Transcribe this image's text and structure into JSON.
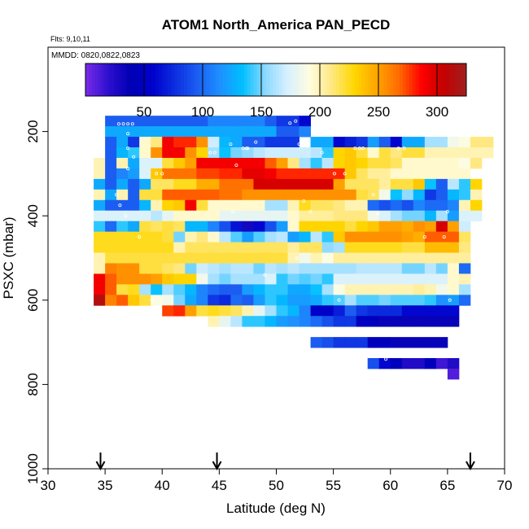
{
  "chart_data": {
    "type": "heatmap",
    "title": "ATOM1 North_America PAN_PECD",
    "info_lines": [
      "Flts: 9,10,11",
      "MMDD: 0820,0822,0823"
    ],
    "xlabel": "Latitude (deg N)",
    "ylabel": "PSXC (mbar)",
    "xlim": [
      30,
      70
    ],
    "ylim": [
      1000,
      0
    ],
    "x_ticks": [
      30,
      35,
      40,
      45,
      50,
      55,
      60,
      65,
      70
    ],
    "y_ticks": [
      200,
      400,
      600,
      800,
      1000
    ],
    "colorbar": {
      "range": [
        0,
        325
      ],
      "tick_labels": [
        50,
        100,
        150,
        200,
        250,
        300
      ],
      "colors": [
        "#7a2be8",
        "#2e10d0",
        "#0000b4",
        "#0000cc",
        "#0c2ee0",
        "#1c5ef2",
        "#1e90ff",
        "#00bfff",
        "#8ad8ff",
        "#d6f0ff",
        "#fffde0",
        "#ffe880",
        "#ffd700",
        "#ffa500",
        "#ff6a00",
        "#ff0000",
        "#c40000",
        "#a02020"
      ]
    },
    "arrows_at_latitude": [
      34.6,
      44.8,
      67.0
    ],
    "x_centers": [
      34.5,
      35.5,
      36.5,
      37.5,
      38.5,
      39.5,
      40.5,
      41.5,
      42.5,
      43.5,
      44.5,
      45.5,
      46.5,
      47.5,
      48.5,
      49.5,
      50.5,
      51.5,
      52.5,
      53.5,
      54.5,
      55.5,
      56.5,
      57.5,
      58.5,
      59.5,
      60.5,
      61.5,
      62.5,
      63.5,
      64.5,
      65.5,
      66.5,
      67.5,
      68.5
    ],
    "y_centers": [
      175,
      200,
      225,
      250,
      275,
      300,
      325,
      350,
      375,
      400,
      425,
      450,
      475,
      500,
      525,
      550,
      575,
      600,
      625,
      650,
      675,
      700,
      725,
      750,
      775,
      800,
      825,
      850,
      875,
      900,
      925,
      950
    ],
    "grid": [
      [
        null,
        95,
        95,
        95,
        95,
        95,
        95,
        95,
        95,
        95,
        110,
        110,
        110,
        110,
        110,
        95,
        80,
        80,
        60,
        null,
        null,
        null,
        null,
        null,
        null,
        null,
        null,
        null,
        null,
        null,
        null,
        null,
        null,
        null,
        null
      ],
      [
        null,
        125,
        125,
        125,
        125,
        125,
        125,
        125,
        125,
        125,
        125,
        125,
        125,
        125,
        125,
        125,
        95,
        95,
        110,
        null,
        null,
        null,
        null,
        null,
        null,
        null,
        null,
        null,
        null,
        null,
        null,
        null,
        null,
        null,
        null
      ],
      [
        null,
        95,
        125,
        80,
        195,
        210,
        290,
        280,
        280,
        255,
        170,
        130,
        125,
        95,
        95,
        80,
        80,
        80,
        null,
        125,
        125,
        60,
        70,
        80,
        120,
        95,
        60,
        125,
        125,
        160,
        160,
        185,
        190,
        210,
        210
      ],
      [
        null,
        95,
        130,
        140,
        195,
        255,
        290,
        290,
        255,
        230,
        160,
        135,
        150,
        155,
        165,
        170,
        170,
        170,
        170,
        165,
        140,
        230,
        235,
        220,
        195,
        220,
        210,
        220,
        220,
        200,
        200,
        200,
        200,
        200,
        200
      ],
      [
        200,
        95,
        200,
        125,
        175,
        175,
        220,
        235,
        250,
        290,
        290,
        290,
        290,
        290,
        290,
        270,
        250,
        210,
        160,
        140,
        165,
        230,
        235,
        230,
        220,
        220,
        215,
        195,
        195,
        195,
        195,
        195,
        190,
        210,
        null
      ],
      [
        200,
        95,
        110,
        120,
        175,
        235,
        265,
        265,
        265,
        275,
        275,
        280,
        280,
        295,
        295,
        290,
        280,
        280,
        280,
        280,
        280,
        280,
        235,
        215,
        205,
        205,
        195,
        195,
        195,
        195,
        195,
        195,
        195,
        null,
        null
      ],
      [
        125,
        95,
        125,
        95,
        125,
        215,
        215,
        225,
        225,
        245,
        245,
        265,
        265,
        265,
        300,
        300,
        300,
        300,
        300,
        300,
        300,
        250,
        215,
        215,
        215,
        205,
        220,
        220,
        235,
        135,
        95,
        165,
        140,
        230,
        null
      ],
      [
        200,
        125,
        200,
        95,
        220,
        220,
        270,
        270,
        270,
        270,
        270,
        265,
        265,
        255,
        255,
        255,
        255,
        255,
        255,
        255,
        255,
        255,
        255,
        220,
        215,
        185,
        135,
        155,
        130,
        80,
        95,
        130,
        140,
        200,
        null
      ],
      [
        125,
        95,
        95,
        95,
        130,
        200,
        230,
        235,
        290,
        220,
        195,
        195,
        195,
        195,
        195,
        160,
        160,
        200,
        225,
        215,
        215,
        210,
        200,
        200,
        100,
        90,
        100,
        90,
        110,
        100,
        100,
        110,
        200,
        230,
        null
      ],
      [
        175,
        175,
        175,
        175,
        175,
        165,
        180,
        195,
        195,
        195,
        195,
        180,
        180,
        180,
        180,
        180,
        180,
        195,
        205,
        205,
        205,
        210,
        210,
        210,
        185,
        175,
        160,
        150,
        150,
        130,
        160,
        120,
        175,
        175,
        null
      ],
      [
        140,
        100,
        140,
        125,
        220,
        215,
        220,
        215,
        130,
        130,
        110,
        90,
        65,
        30,
        60,
        90,
        120,
        195,
        230,
        230,
        230,
        230,
        220,
        230,
        235,
        250,
        250,
        245,
        255,
        250,
        300,
        250,
        170,
        null,
        null
      ],
      [
        225,
        225,
        225,
        225,
        225,
        225,
        220,
        150,
        200,
        210,
        195,
        165,
        145,
        120,
        145,
        160,
        165,
        120,
        130,
        165,
        140,
        235,
        255,
        255,
        255,
        255,
        255,
        250,
        245,
        270,
        270,
        270,
        215,
        null,
        null
      ],
      [
        225,
        225,
        225,
        225,
        225,
        225,
        225,
        200,
        215,
        215,
        215,
        215,
        215,
        215,
        215,
        215,
        215,
        205,
        215,
        215,
        155,
        160,
        225,
        225,
        225,
        225,
        225,
        220,
        220,
        240,
        240,
        240,
        210,
        null,
        null
      ],
      [
        200,
        220,
        220,
        220,
        220,
        220,
        220,
        220,
        220,
        220,
        220,
        220,
        220,
        220,
        220,
        220,
        220,
        200,
        185,
        200,
        190,
        205,
        205,
        205,
        205,
        205,
        205,
        205,
        205,
        205,
        205,
        205,
        205,
        null,
        null
      ],
      [
        200,
        260,
        255,
        255,
        220,
        220,
        215,
        210,
        150,
        170,
        165,
        160,
        165,
        165,
        150,
        165,
        160,
        165,
        160,
        160,
        160,
        160,
        160,
        165,
        165,
        165,
        165,
        150,
        150,
        165,
        150,
        195,
        100,
        null,
        null
      ],
      [
        290,
        270,
        255,
        255,
        255,
        250,
        235,
        230,
        230,
        185,
        160,
        150,
        160,
        160,
        160,
        175,
        140,
        150,
        145,
        150,
        140,
        175,
        175,
        175,
        175,
        175,
        175,
        175,
        175,
        175,
        175,
        195,
        200,
        null,
        null
      ],
      [
        290,
        270,
        220,
        225,
        160,
        135,
        160,
        145,
        130,
        110,
        100,
        95,
        95,
        120,
        130,
        140,
        140,
        125,
        125,
        135,
        160,
        190,
        200,
        200,
        200,
        200,
        200,
        200,
        205,
        200,
        185,
        195,
        160,
        null,
        null
      ],
      [
        315,
        260,
        270,
        235,
        220,
        190,
        185,
        150,
        125,
        110,
        80,
        75,
        100,
        95,
        120,
        140,
        130,
        120,
        120,
        125,
        140,
        145,
        160,
        145,
        145,
        150,
        145,
        145,
        145,
        140,
        115,
        120,
        100,
        null,
        null
      ],
      [
        null,
        null,
        null,
        null,
        null,
        null,
        275,
        280,
        250,
        220,
        225,
        220,
        215,
        200,
        180,
        160,
        140,
        130,
        110,
        55,
        55,
        70,
        95,
        80,
        75,
        75,
        75,
        60,
        60,
        60,
        60,
        60,
        null,
        null,
        null
      ],
      [
        null,
        null,
        null,
        null,
        null,
        null,
        null,
        null,
        null,
        null,
        200,
        180,
        165,
        140,
        140,
        130,
        120,
        115,
        110,
        100,
        90,
        80,
        80,
        50,
        45,
        35,
        35,
        35,
        35,
        35,
        35,
        35,
        null,
        null,
        null
      ],
      [
        null,
        null,
        null,
        null,
        null,
        null,
        null,
        null,
        null,
        null,
        null,
        null,
        null,
        null,
        null,
        null,
        null,
        null,
        null,
        95,
        90,
        80,
        80,
        80,
        45,
        45,
        35,
        35,
        35,
        35,
        35,
        null,
        null,
        null,
        null
      ],
      [
        null,
        null,
        null,
        null,
        null,
        null,
        null,
        null,
        null,
        null,
        null,
        null,
        null,
        null,
        null,
        null,
        null,
        null,
        null,
        null,
        null,
        null,
        null,
        null,
        90,
        60,
        45,
        25,
        25,
        45,
        15,
        25,
        null,
        null,
        null
      ],
      [
        null,
        null,
        null,
        null,
        null,
        null,
        null,
        null,
        null,
        null,
        null,
        null,
        null,
        null,
        null,
        null,
        null,
        null,
        null,
        null,
        null,
        null,
        null,
        null,
        null,
        null,
        null,
        null,
        null,
        null,
        null,
        10,
        null,
        null,
        null
      ]
    ],
    "row_pressures": [
      175,
      200,
      225,
      250,
      275,
      300,
      325,
      350,
      375,
      400,
      425,
      450,
      475,
      500,
      525,
      550,
      575,
      600,
      625,
      650,
      700,
      750,
      775
    ],
    "sample_points": [
      [
        36.2,
        182
      ],
      [
        36.6,
        182
      ],
      [
        37.0,
        182
      ],
      [
        37.4,
        182
      ],
      [
        37.0,
        205
      ],
      [
        37.0,
        240
      ],
      [
        37.5,
        260
      ],
      [
        37.0,
        288
      ],
      [
        39.5,
        300
      ],
      [
        40.0,
        300
      ],
      [
        36.0,
        350
      ],
      [
        36.3,
        375
      ],
      [
        36.8,
        400
      ],
      [
        44.2,
        250
      ],
      [
        44.6,
        250
      ],
      [
        46.0,
        230
      ],
      [
        46.5,
        280
      ],
      [
        47.1,
        240
      ],
      [
        47.5,
        240
      ],
      [
        48.2,
        225
      ],
      [
        51.2,
        180
      ],
      [
        52.0,
        230
      ],
      [
        52.3,
        230
      ],
      [
        51.7,
        175
      ],
      [
        54.0,
        250
      ],
      [
        55.1,
        300
      ],
      [
        56.9,
        240
      ],
      [
        57.3,
        240
      ],
      [
        57.6,
        240
      ],
      [
        60.7,
        240
      ],
      [
        61.2,
        240
      ],
      [
        63.0,
        450
      ],
      [
        65.0,
        390
      ],
      [
        65.2,
        600
      ],
      [
        64.7,
        450
      ],
      [
        56.0,
        300
      ],
      [
        53.0,
        390
      ],
      [
        55.5,
        600
      ],
      [
        58.5,
        350
      ],
      [
        58.9,
        395
      ],
      [
        51.8,
        500
      ],
      [
        46.2,
        390
      ],
      [
        59.1,
        810
      ],
      [
        59.0,
        800
      ],
      [
        59.6,
        740
      ],
      [
        65.0,
        902
      ],
      [
        65.0,
        935
      ],
      [
        67.2,
        612
      ],
      [
        67.5,
        665
      ],
      [
        38.0,
        450
      ],
      [
        39.1,
        600
      ],
      [
        47.4,
        240
      ],
      [
        52.4,
        365
      ],
      [
        49.0,
        540
      ]
    ]
  }
}
